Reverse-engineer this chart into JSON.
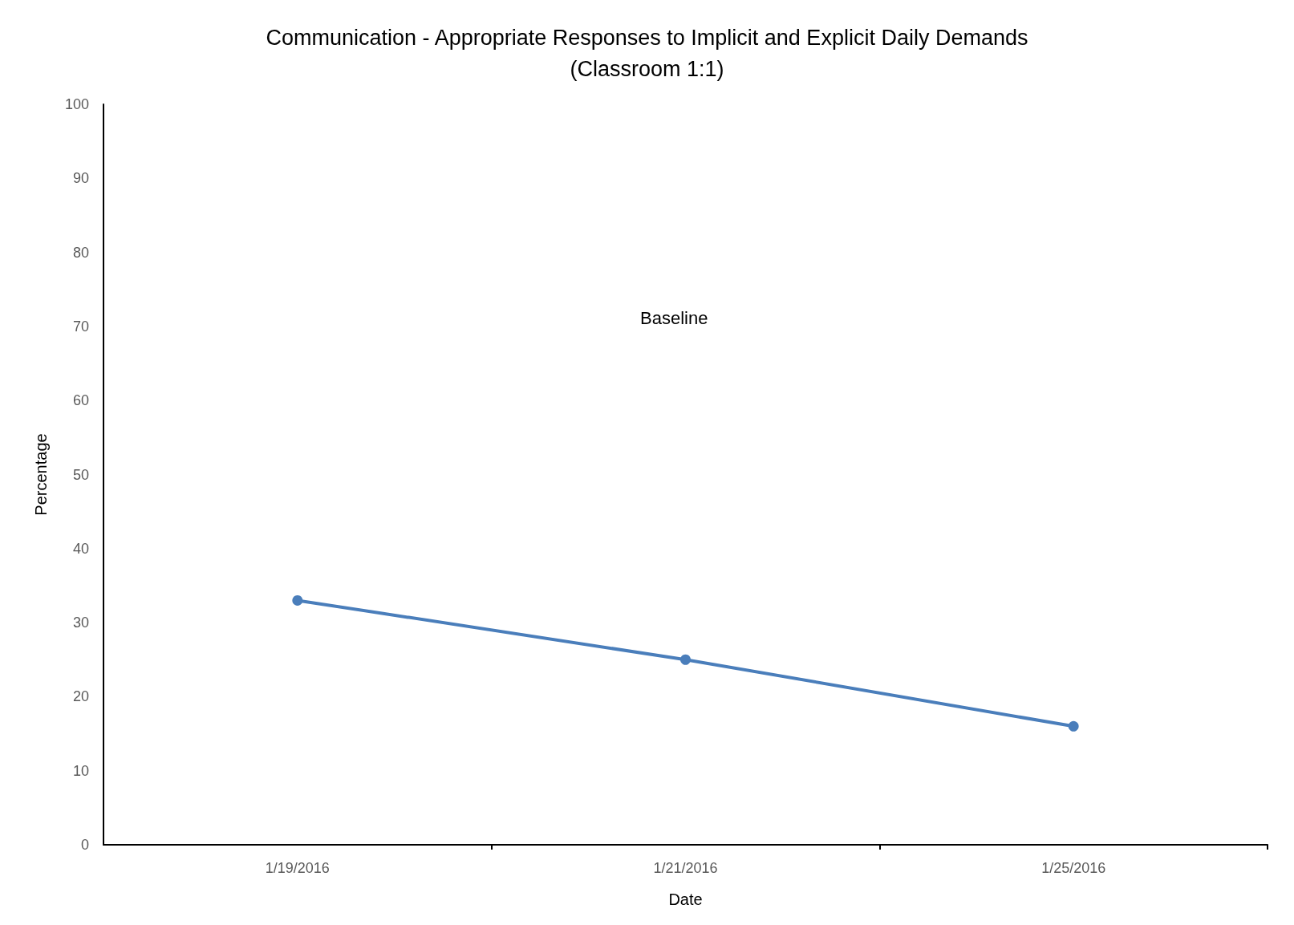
{
  "chart_data": {
    "type": "line",
    "title": "Communication - Appropriate Responses to Implicit and Explicit Daily Demands\n(Classroom 1:1)",
    "xlabel": "Date",
    "ylabel": "Percentage",
    "categories": [
      "1/19/2016",
      "1/21/2016",
      "1/25/2016"
    ],
    "series": [
      {
        "color": "#4a7ebb",
        "values": [
          33,
          25,
          16
        ]
      }
    ],
    "ylim": [
      0,
      100
    ],
    "yticks": [
      0,
      10,
      20,
      30,
      40,
      50,
      60,
      70,
      80,
      90,
      100
    ],
    "annotations": [
      "Baseline"
    ],
    "grid": false,
    "legend": false,
    "marker": "circle",
    "line_style": "solid"
  }
}
